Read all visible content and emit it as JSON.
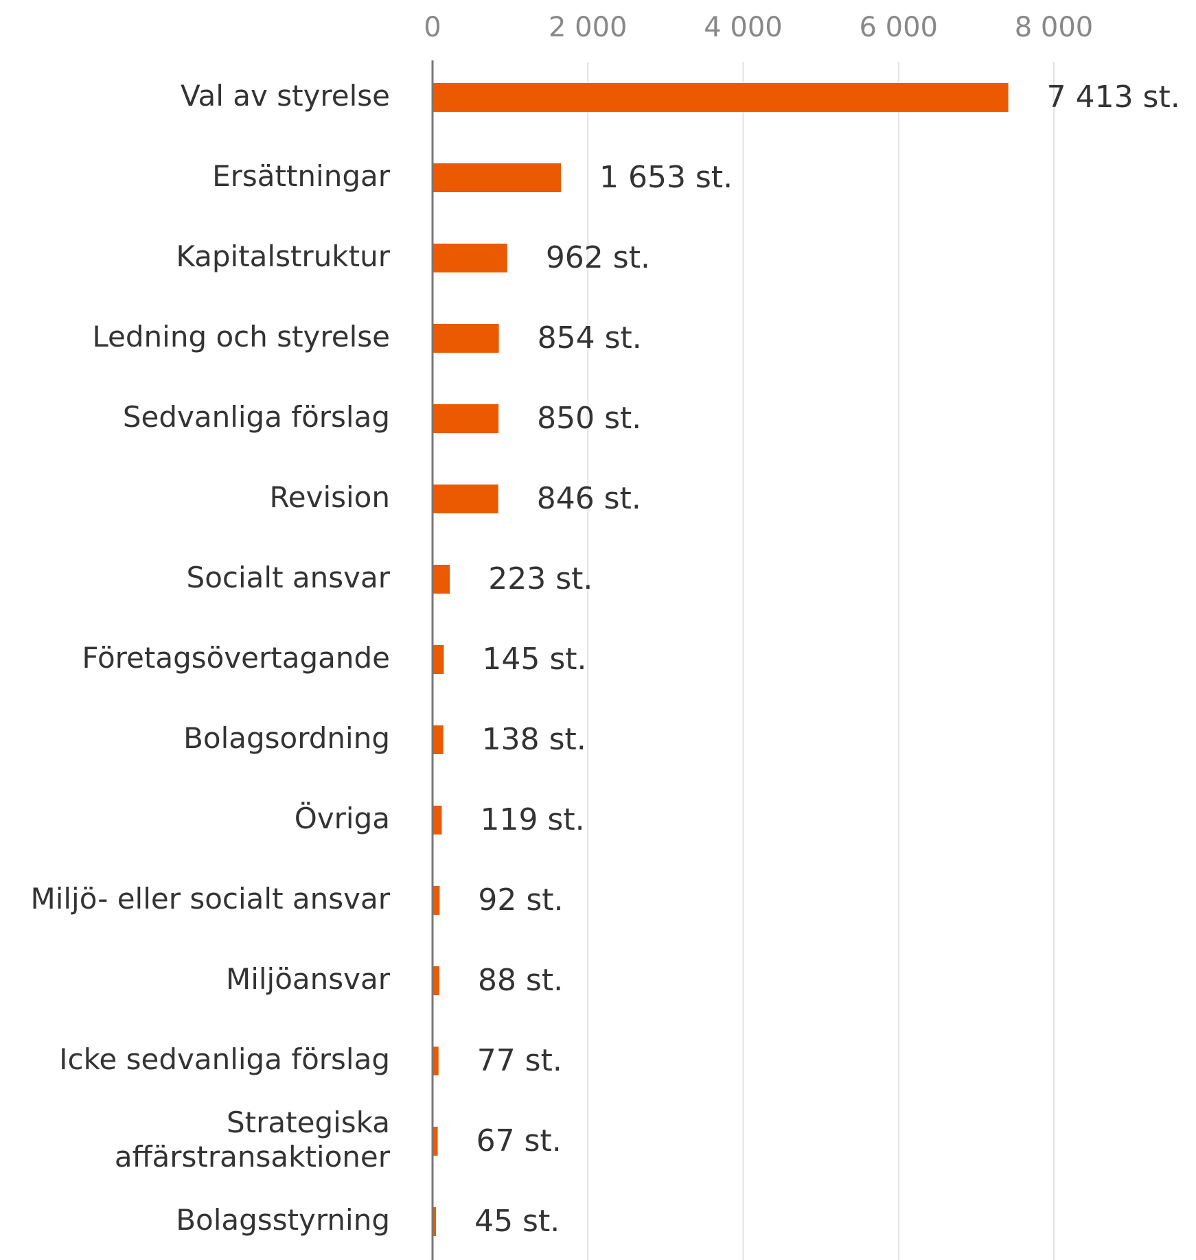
{
  "chart_data": {
    "type": "bar",
    "orientation": "horizontal",
    "categories": [
      "Val av styrelse",
      "Ersättningar",
      "Kapitalstruktur",
      "Ledning och styrelse",
      "Sedvanliga förslag",
      "Revision",
      "Socialt ansvar",
      "Företagsövertagande",
      "Bolagsordning",
      "Övriga",
      "Miljö- eller socialt ansvar",
      "Miljöansvar",
      "Icke sedvanliga förslag",
      "Strategiska\naffärstransaktioner",
      "Bolagsstyrning"
    ],
    "values": [
      7413,
      1653,
      962,
      854,
      850,
      846,
      223,
      145,
      138,
      119,
      92,
      88,
      77,
      67,
      45
    ],
    "value_labels": [
      "7 413 st.",
      "1 653 st.",
      "962 st.",
      "854 st.",
      "850 st.",
      "846 st.",
      "223 st.",
      "145 st.",
      "138 st.",
      "119 st.",
      "92 st.",
      "88 st.",
      "77 st.",
      "67 st.",
      "45 st."
    ],
    "color": "#eb5a00",
    "xlim": [
      0,
      8000
    ],
    "xticks": [
      0,
      {
        "value": 2000,
        "label": "2 000"
      },
      {
        "value": 4000,
        "label": "4 000"
      },
      {
        "value": 6000,
        "label": "6 000"
      },
      {
        "value": 8000,
        "label": "8 000"
      }
    ],
    "grid": true
  }
}
